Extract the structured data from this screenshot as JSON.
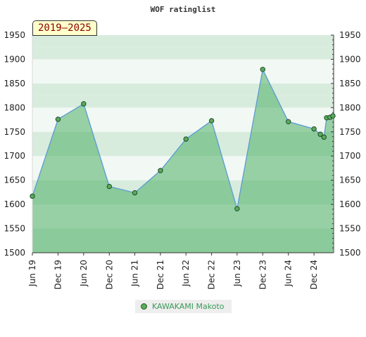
{
  "chart_data": {
    "type": "area",
    "title": "WOF ratinglist",
    "badge": "2019–2025",
    "ylim": [
      1500,
      1950
    ],
    "y_ticks": [
      1500,
      1550,
      1600,
      1650,
      1700,
      1750,
      1800,
      1850,
      1900,
      1950
    ],
    "x_ticks": [
      {
        "label": "Jun 19",
        "date": "2019-06-01"
      },
      {
        "label": "Dec 19",
        "date": "2019-12-01"
      },
      {
        "label": "Jun 20",
        "date": "2020-06-01"
      },
      {
        "label": "Dec 20",
        "date": "2020-12-01"
      },
      {
        "label": "Jun 21",
        "date": "2021-06-01"
      },
      {
        "label": "Dec 21",
        "date": "2021-12-01"
      },
      {
        "label": "Jun 22",
        "date": "2022-06-01"
      },
      {
        "label": "Dec 22",
        "date": "2022-12-01"
      },
      {
        "label": "Jun 23",
        "date": "2023-06-01"
      },
      {
        "label": "Dec 23",
        "date": "2023-12-01"
      },
      {
        "label": "Jun 24",
        "date": "2024-06-01"
      },
      {
        "label": "Dec 24",
        "date": "2024-12-01"
      }
    ],
    "xlim": [
      "2019-06-01",
      "2025-04-20"
    ],
    "grid": true,
    "legend_position": "bottom",
    "series": [
      {
        "name": "KAWAKAMI Makoto",
        "color": "#5b9bd5",
        "marker_color": "#5aab5a",
        "points": [
          {
            "date": "2019-06-01",
            "value": 1617
          },
          {
            "date": "2019-12-01",
            "value": 1776
          },
          {
            "date": "2020-06-01",
            "value": 1808
          },
          {
            "date": "2020-12-01",
            "value": 1637
          },
          {
            "date": "2021-06-01",
            "value": 1624
          },
          {
            "date": "2021-12-01",
            "value": 1670
          },
          {
            "date": "2022-06-01",
            "value": 1735
          },
          {
            "date": "2022-12-01",
            "value": 1773
          },
          {
            "date": "2023-06-01",
            "value": 1591
          },
          {
            "date": "2023-12-01",
            "value": 1879
          },
          {
            "date": "2024-06-01",
            "value": 1771
          },
          {
            "date": "2024-12-01",
            "value": 1756
          },
          {
            "date": "2025-01-15",
            "value": 1745
          },
          {
            "date": "2025-02-10",
            "value": 1739
          },
          {
            "date": "2025-03-01",
            "value": 1779
          },
          {
            "date": "2025-03-25",
            "value": 1780
          },
          {
            "date": "2025-04-15",
            "value": 1783
          }
        ]
      }
    ]
  }
}
